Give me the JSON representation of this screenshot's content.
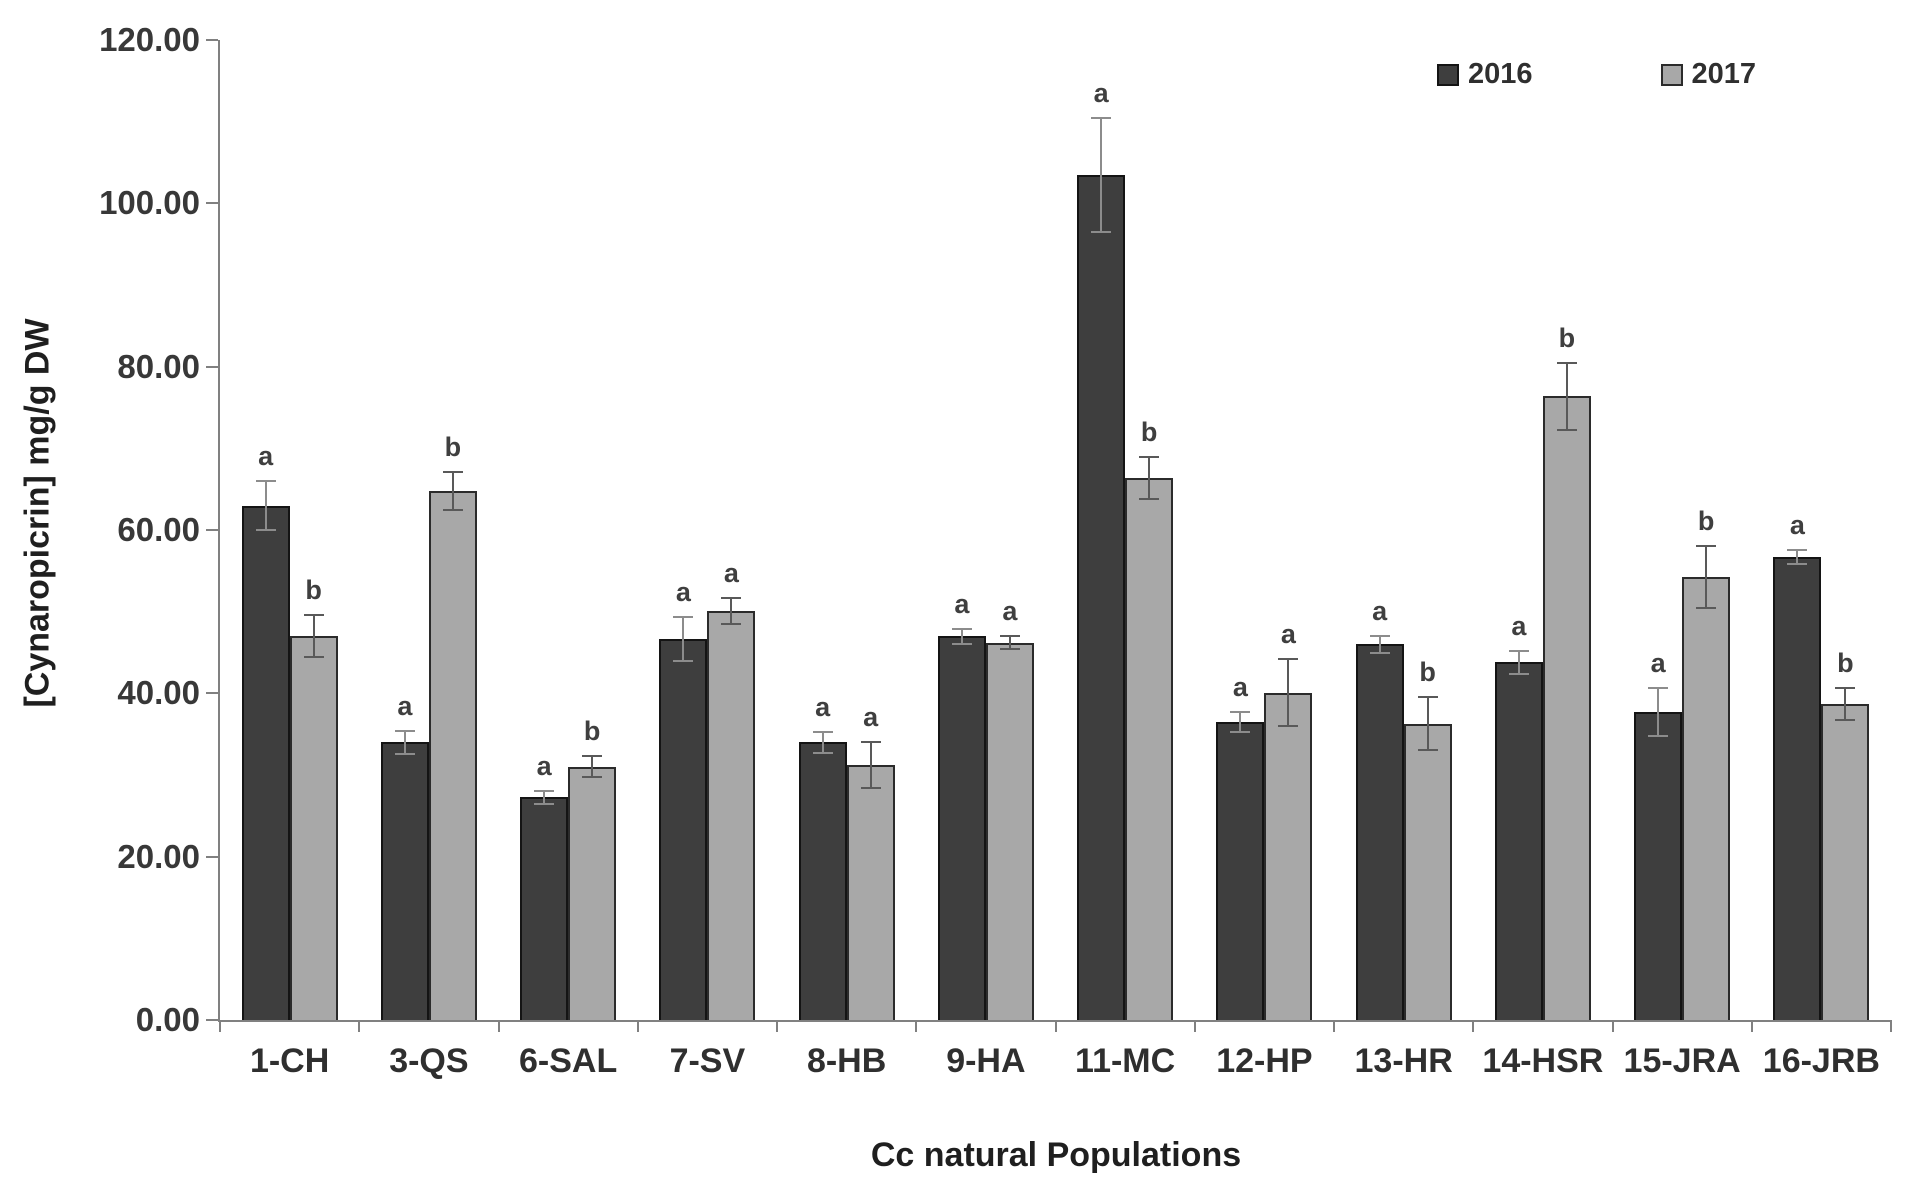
{
  "figure": {
    "background": "#ffffff",
    "axis_color": "#808080",
    "letter_color": "#3f3f3f"
  },
  "legend": {
    "position": "top-right",
    "items": [
      {
        "label": "2016",
        "swatch_color": "#3e3e3e",
        "swatch_border": "#141414"
      },
      {
        "label": "2017",
        "swatch_color": "#a8a8a8",
        "swatch_border": "#2b2b2b"
      }
    ]
  },
  "chart_data": {
    "type": "bar",
    "title": "",
    "xlabel": "Cc natural Populations",
    "ylabel": "[Cynaropicrin] mg/g DW",
    "ylim": [
      0,
      120
    ],
    "ytick_step": 20,
    "ytick_labels": [
      "0.00",
      "20.00",
      "40.00",
      "60.00",
      "80.00",
      "100.00",
      "120.00"
    ],
    "grid": false,
    "legend_position": "top-right",
    "error_bars": true,
    "significance_letters": true,
    "categories": [
      "1-CH",
      "3-QS",
      "6-SAL",
      "7-SV",
      "8-HB",
      "9-HA",
      "11-MC",
      "12-HP",
      "13-HR",
      "14-HSR",
      "15-JRA",
      "16-JRB"
    ],
    "series": [
      {
        "name": "2016",
        "color": "#3e3e3e",
        "border_color": "#141414",
        "whisker_color": "#8c8c8c",
        "values": [
          63.0,
          34.0,
          27.3,
          46.7,
          34.0,
          47.0,
          103.5,
          36.5,
          46.0,
          43.8,
          37.7,
          56.7
        ],
        "errors": [
          3.0,
          1.4,
          0.8,
          2.7,
          1.3,
          0.9,
          7.0,
          1.2,
          1.0,
          1.4,
          2.9,
          0.9
        ],
        "letters": [
          "a",
          "a",
          "a",
          "a",
          "a",
          "a",
          "a",
          "a",
          "a",
          "a",
          "a",
          "a"
        ]
      },
      {
        "name": "2017",
        "color": "#a8a8a8",
        "border_color": "#2b2b2b",
        "whisker_color": "#595959",
        "values": [
          47.0,
          64.8,
          31.0,
          50.1,
          31.2,
          46.2,
          66.4,
          40.1,
          36.3,
          76.4,
          54.3,
          38.7
        ],
        "errors": [
          2.6,
          2.3,
          1.3,
          1.6,
          2.8,
          0.8,
          2.6,
          4.1,
          3.2,
          4.1,
          3.8,
          2.0
        ],
        "letters": [
          "b",
          "b",
          "b",
          "a",
          "a",
          "a",
          "b",
          "a",
          "b",
          "b",
          "b",
          "b"
        ]
      }
    ]
  }
}
